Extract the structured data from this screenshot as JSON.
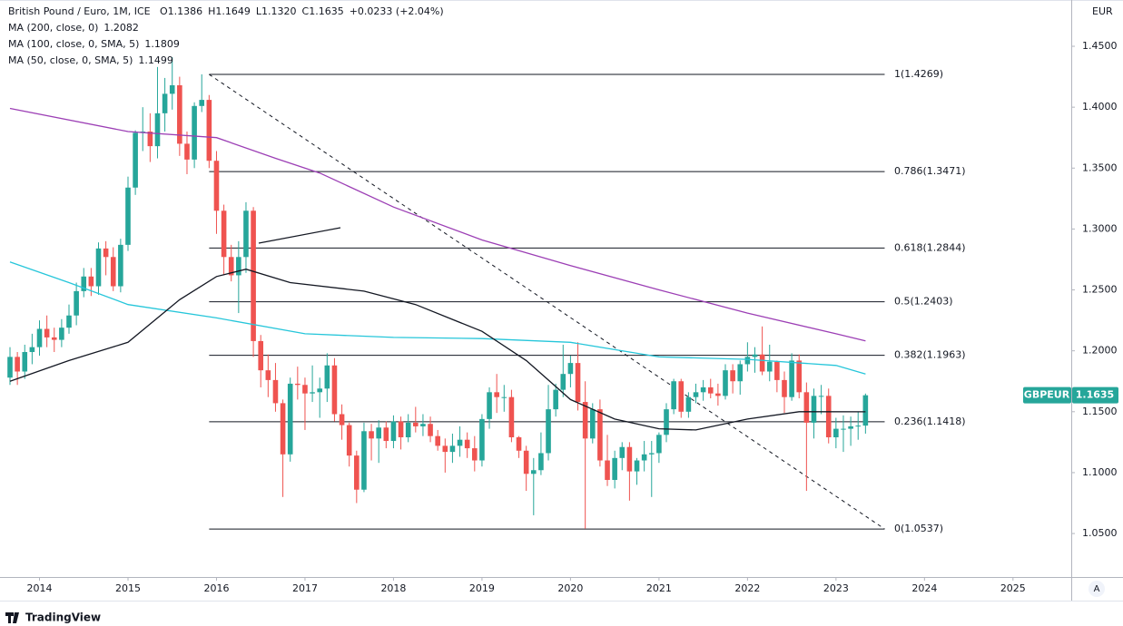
{
  "chart_data": {
    "type": "candlestick",
    "title": "British Pound / Euro, 1M, ICE",
    "ohlc_labels": [
      "O1.1386",
      "H1.1649",
      "L1.1320",
      "C1.1635"
    ],
    "change": "+0.0233 (+2.04%)",
    "currency": "EUR",
    "symbol": "GBPEUR",
    "last_label": "1.1635",
    "up_color": "#26a69a",
    "down_color": "#ef5350",
    "open": [
      1.178,
      1.195,
      1.183,
      1.199,
      1.203,
      1.218,
      1.211,
      1.209,
      1.219,
      1.229,
      1.249,
      1.261,
      1.253,
      1.284,
      1.277,
      1.253,
      1.287,
      1.334,
      1.379,
      1.38,
      1.368,
      1.395,
      1.411,
      1.418,
      1.37,
      1.357,
      1.401,
      1.406,
      1.356,
      1.315,
      1.277,
      1.262,
      1.277,
      1.315,
      1.208,
      1.184,
      1.176,
      1.157,
      1.115,
      1.173,
      1.172,
      1.165,
      1.166,
      1.169,
      1.188,
      1.148,
      1.139,
      1.114,
      1.086,
      1.134,
      1.128,
      1.137,
      1.126,
      1.142,
      1.129,
      1.141,
      1.138,
      1.14,
      1.13,
      1.122,
      1.117,
      1.122,
      1.127,
      1.12,
      1.11,
      1.144,
      1.166,
      1.162,
      1.162,
      1.129,
      1.118,
      1.099,
      1.102,
      1.116,
      1.152,
      1.168,
      1.181,
      1.19,
      1.158,
      1.128,
      1.152,
      1.11,
      1.094,
      1.112,
      1.121,
      1.101,
      1.11,
      1.115,
      1.116,
      1.131,
      1.152,
      1.175,
      1.15,
      1.162,
      1.166,
      1.17,
      1.165,
      1.163,
      1.184,
      1.175,
      1.189,
      1.195,
      1.197,
      1.183,
      1.191,
      1.176,
      1.162,
      1.192,
      1.166,
      1.141,
      1.163,
      1.163,
      1.129,
      1.136,
      1.136,
      1.138,
      1.1386
    ],
    "high": [
      1.203,
      1.199,
      1.205,
      1.214,
      1.225,
      1.229,
      1.219,
      1.226,
      1.238,
      1.256,
      1.268,
      1.268,
      1.289,
      1.29,
      1.285,
      1.292,
      1.343,
      1.381,
      1.4,
      1.395,
      1.433,
      1.424,
      1.441,
      1.425,
      1.38,
      1.404,
      1.427,
      1.41,
      1.364,
      1.32,
      1.287,
      1.29,
      1.322,
      1.318,
      1.213,
      1.197,
      1.19,
      1.16,
      1.178,
      1.187,
      1.178,
      1.188,
      1.178,
      1.198,
      1.194,
      1.156,
      1.141,
      1.118,
      1.141,
      1.14,
      1.143,
      1.142,
      1.147,
      1.146,
      1.148,
      1.154,
      1.148,
      1.146,
      1.135,
      1.128,
      1.132,
      1.138,
      1.133,
      1.13,
      1.148,
      1.17,
      1.181,
      1.172,
      1.168,
      1.13,
      1.122,
      1.112,
      1.133,
      1.172,
      1.173,
      1.205,
      1.196,
      1.207,
      1.175,
      1.157,
      1.16,
      1.131,
      1.118,
      1.125,
      1.125,
      1.112,
      1.126,
      1.126,
      1.133,
      1.157,
      1.177,
      1.177,
      1.166,
      1.173,
      1.176,
      1.177,
      1.173,
      1.189,
      1.189,
      1.192,
      1.207,
      1.203,
      1.22,
      1.205,
      1.192,
      1.183,
      1.198,
      1.197,
      1.174,
      1.169,
      1.172,
      1.169,
      1.145,
      1.147,
      1.146,
      1.15,
      1.1649
    ],
    "low": [
      1.172,
      1.172,
      1.177,
      1.189,
      1.196,
      1.203,
      1.199,
      1.203,
      1.214,
      1.221,
      1.244,
      1.245,
      1.246,
      1.262,
      1.249,
      1.248,
      1.282,
      1.328,
      1.364,
      1.355,
      1.358,
      1.38,
      1.398,
      1.36,
      1.345,
      1.35,
      1.396,
      1.35,
      1.296,
      1.262,
      1.257,
      1.231,
      1.264,
      1.195,
      1.17,
      1.162,
      1.15,
      1.08,
      1.109,
      1.16,
      1.135,
      1.158,
      1.145,
      1.158,
      1.142,
      1.127,
      1.105,
      1.075,
      1.084,
      1.11,
      1.108,
      1.12,
      1.12,
      1.119,
      1.125,
      1.133,
      1.13,
      1.125,
      1.118,
      1.1,
      1.108,
      1.113,
      1.112,
      1.101,
      1.105,
      1.136,
      1.149,
      1.15,
      1.125,
      1.112,
      1.085,
      1.065,
      1.098,
      1.11,
      1.146,
      1.162,
      1.17,
      1.151,
      1.054,
      1.124,
      1.105,
      1.089,
      1.087,
      1.102,
      1.077,
      1.09,
      1.101,
      1.08,
      1.108,
      1.125,
      1.148,
      1.145,
      1.145,
      1.157,
      1.159,
      1.161,
      1.155,
      1.16,
      1.165,
      1.164,
      1.183,
      1.182,
      1.18,
      1.175,
      1.166,
      1.149,
      1.159,
      1.161,
      1.085,
      1.128,
      1.148,
      1.124,
      1.12,
      1.117,
      1.122,
      1.127,
      1.132
    ],
    "close": [
      1.195,
      1.183,
      1.199,
      1.203,
      1.218,
      1.211,
      1.209,
      1.219,
      1.229,
      1.249,
      1.261,
      1.253,
      1.284,
      1.277,
      1.253,
      1.287,
      1.334,
      1.379,
      1.38,
      1.368,
      1.395,
      1.411,
      1.418,
      1.37,
      1.357,
      1.401,
      1.406,
      1.356,
      1.315,
      1.277,
      1.262,
      1.277,
      1.315,
      1.208,
      1.184,
      1.176,
      1.157,
      1.115,
      1.173,
      1.172,
      1.165,
      1.166,
      1.169,
      1.188,
      1.148,
      1.139,
      1.114,
      1.086,
      1.134,
      1.128,
      1.137,
      1.126,
      1.142,
      1.129,
      1.141,
      1.138,
      1.14,
      1.13,
      1.122,
      1.117,
      1.122,
      1.127,
      1.12,
      1.11,
      1.144,
      1.166,
      1.162,
      1.162,
      1.129,
      1.118,
      1.099,
      1.102,
      1.116,
      1.152,
      1.168,
      1.181,
      1.19,
      1.158,
      1.128,
      1.152,
      1.11,
      1.094,
      1.112,
      1.121,
      1.101,
      1.11,
      1.115,
      1.116,
      1.131,
      1.152,
      1.175,
      1.15,
      1.162,
      1.166,
      1.17,
      1.165,
      1.163,
      1.184,
      1.175,
      1.189,
      1.195,
      1.197,
      1.183,
      1.191,
      1.176,
      1.162,
      1.192,
      1.166,
      1.141,
      1.163,
      1.163,
      1.129,
      1.136,
      1.136,
      1.138,
      1.1386,
      1.1635
    ],
    "xlim": [
      -0.74,
      143.9
    ],
    "xticks": [
      {
        "value": 4,
        "label": "2014"
      },
      {
        "value": 16,
        "label": "2015"
      },
      {
        "value": 28,
        "label": "2016"
      },
      {
        "value": 40,
        "label": "2017"
      },
      {
        "value": 52,
        "label": "2018"
      },
      {
        "value": 64,
        "label": "2019"
      },
      {
        "value": 76,
        "label": "2020"
      },
      {
        "value": 88,
        "label": "2021"
      },
      {
        "value": 100,
        "label": "2022"
      },
      {
        "value": 112,
        "label": "2023"
      },
      {
        "value": 124,
        "label": "2024"
      },
      {
        "value": 136,
        "label": "2025"
      }
    ],
    "ylim": [
      1.0143,
      1.488
    ],
    "yticks": [
      {
        "value": 1.45,
        "label": "1.4500"
      },
      {
        "value": 1.4,
        "label": "1.4000"
      },
      {
        "value": 1.35,
        "label": "1.3500"
      },
      {
        "value": 1.3,
        "label": "1.3000"
      },
      {
        "value": 1.25,
        "label": "1.2500"
      },
      {
        "value": 1.2,
        "label": "1.2000"
      },
      {
        "value": 1.15,
        "label": "1.1500"
      },
      {
        "value": 1.1,
        "label": "1.1000"
      },
      {
        "value": 1.05,
        "label": "1.0500"
      }
    ],
    "series": [
      {
        "name": "MA (200, close, 0)",
        "legend_value": "1.2082",
        "color": "#9c3fb5",
        "x": [
          0,
          16,
          28,
          36,
          42,
          52,
          64,
          76,
          88,
          100,
          112,
          116
        ],
        "values": [
          1.399,
          1.38,
          1.375,
          1.358,
          1.346,
          1.318,
          1.291,
          1.27,
          1.25,
          1.231,
          1.214,
          1.2082
        ]
      },
      {
        "name": "MA (100, close, 0, SMA, 5)",
        "legend_value": "1.1809",
        "color": "#26c6da",
        "x": [
          0,
          8,
          16,
          28,
          40,
          52,
          64,
          76,
          88,
          100,
          112,
          116
        ],
        "values": [
          1.273,
          1.256,
          1.238,
          1.227,
          1.214,
          1.211,
          1.21,
          1.207,
          1.195,
          1.193,
          1.188,
          1.1809
        ]
      },
      {
        "name": "MA (50, close, 0, SMA, 5)",
        "legend_value": "1.1499",
        "color": "#131722",
        "x": [
          0,
          8,
          16,
          23,
          28,
          32,
          38,
          48,
          55,
          64,
          70,
          76,
          82,
          88,
          93,
          100,
          107,
          116
        ],
        "values": [
          1.175,
          1.192,
          1.207,
          1.242,
          1.261,
          1.267,
          1.256,
          1.249,
          1.238,
          1.216,
          1.192,
          1.16,
          1.144,
          1.136,
          1.135,
          1.144,
          1.15,
          1.1499
        ]
      }
    ],
    "fib": {
      "x": [
        27,
        118.6
      ],
      "levels": [
        1.4269,
        1.3471,
        1.2844,
        1.2403,
        1.1963,
        1.1418,
        1.0537
      ],
      "labels": [
        "1(1.4269)",
        "0.786(1.3471)",
        "0.618(1.2844)",
        "0.5(1.2403)",
        "0.382(1.1963)",
        "0.236(1.1418)",
        "0(1.0537)"
      ]
    }
  },
  "scale_button": "A",
  "footer": "TradingView"
}
